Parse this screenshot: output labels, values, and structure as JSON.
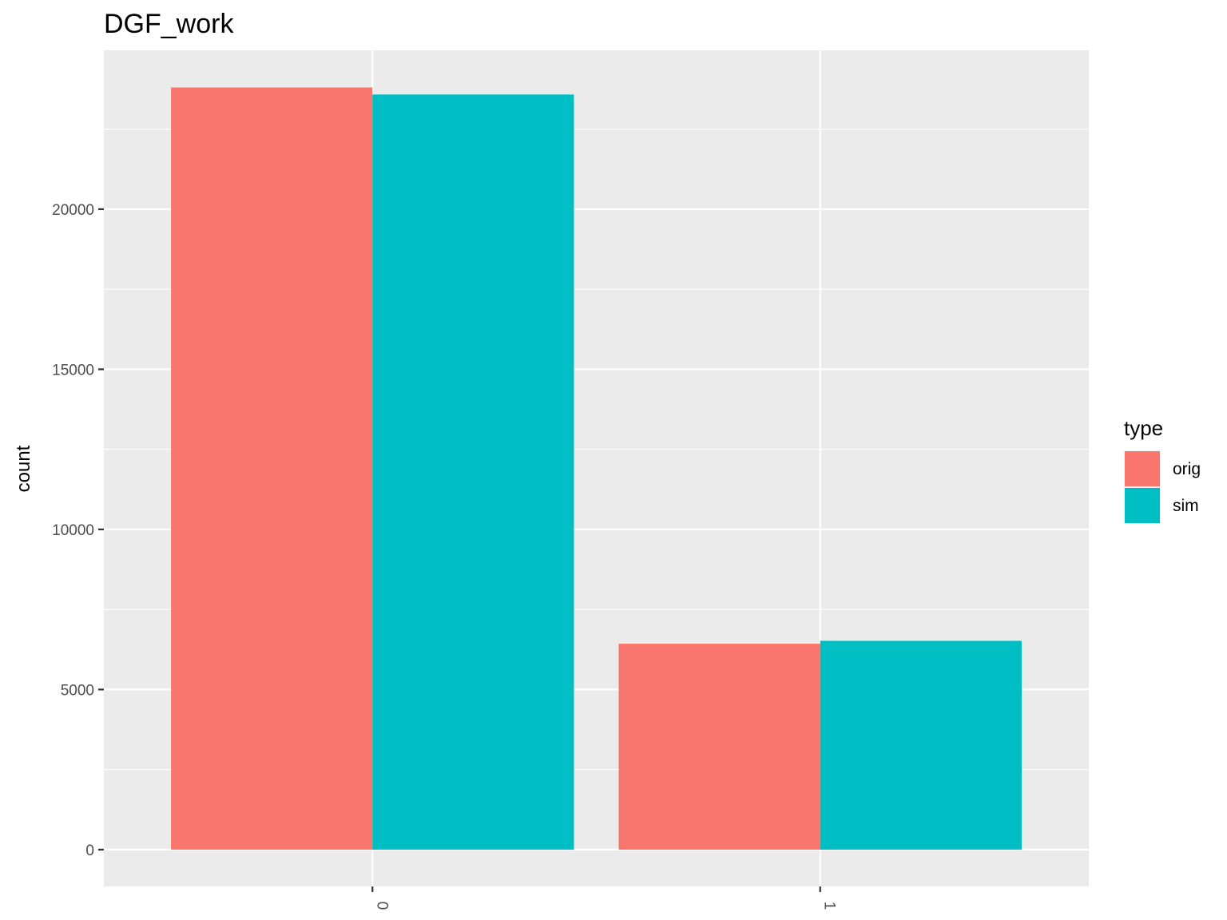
{
  "chart_data": {
    "type": "bar",
    "title": "DGF_work",
    "xlabel": "",
    "ylabel": "count",
    "categories": [
      "0",
      "1"
    ],
    "series": [
      {
        "name": "orig",
        "color": "#F8766D",
        "values": [
          23800,
          6430
        ]
      },
      {
        "name": "sim",
        "color": "#00BFC4",
        "values": [
          23580,
          6520
        ]
      }
    ],
    "yticks": [
      0,
      5000,
      10000,
      15000,
      20000
    ],
    "ylim": [
      -1150,
      24960
    ],
    "grid": true,
    "panel_color": "#EBEBEB",
    "grid_color": "#FFFFFF",
    "legend": {
      "title": "type",
      "placement": "right"
    }
  }
}
